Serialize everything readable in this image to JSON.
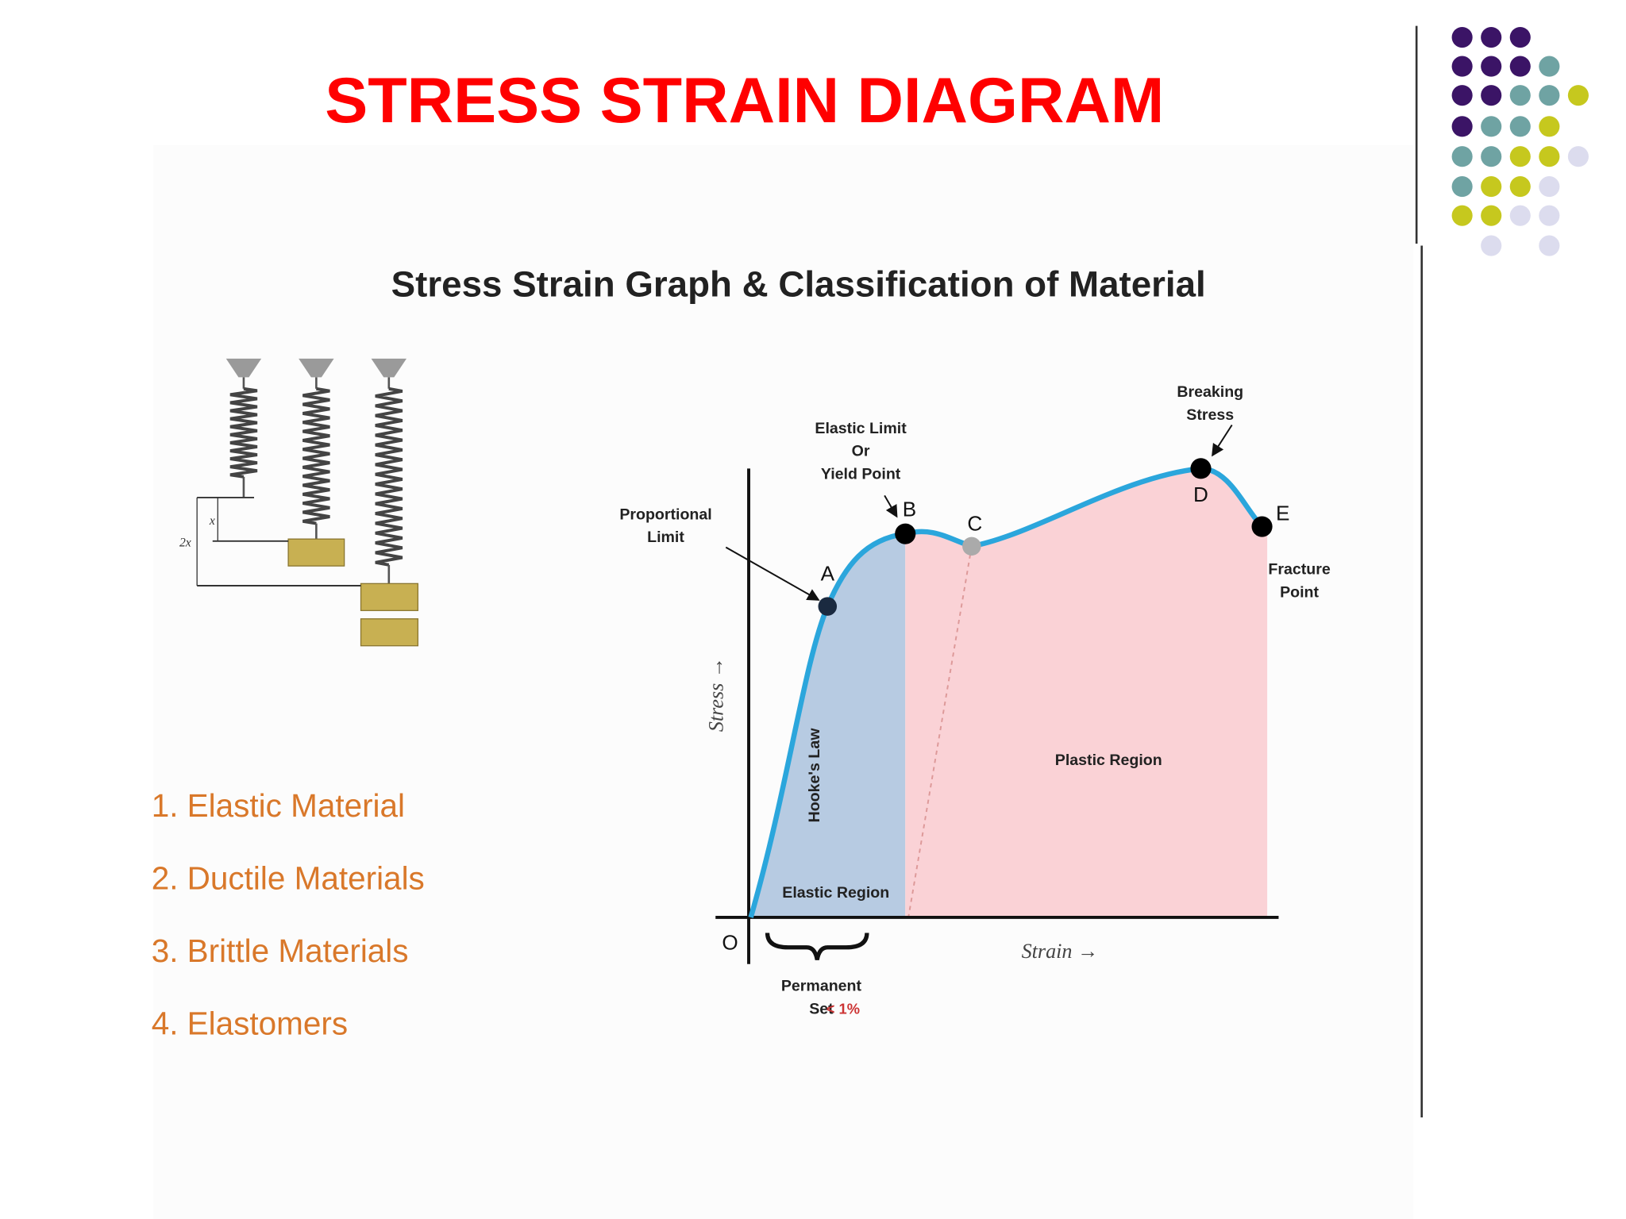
{
  "header": {
    "title": "STRESS STRAIN DIAGRAM"
  },
  "figure": {
    "subtitle": "Stress Strain Graph  & Classification of Material",
    "springs": {
      "x_label": "x",
      "two_x_label": "2x"
    },
    "graph": {
      "origin": "O",
      "y_axis": "Stress →",
      "x_axis": "Strain →",
      "points": [
        "A",
        "B",
        "C",
        "D",
        "E"
      ],
      "proportional_limit": [
        "Proportional",
        "Limit"
      ],
      "elastic_limit": [
        "Elastic  Limit",
        "Or",
        "Yield  Point"
      ],
      "breaking_stress": [
        "Breaking",
        "Stress"
      ],
      "fracture_point": [
        "Fracture",
        "Point"
      ],
      "plastic_region": "Plastic  Region",
      "elastic_region": "Elastic  Region",
      "hookes_law": "Hooke's Law",
      "permanent_set": [
        "Permanent",
        "Set"
      ],
      "permanent_set_value": "< 1%"
    },
    "materials": [
      "1. Elastic Material",
      "2. Ductile Materials",
      "3. Brittle Materials",
      "4. Elastomers"
    ]
  }
}
